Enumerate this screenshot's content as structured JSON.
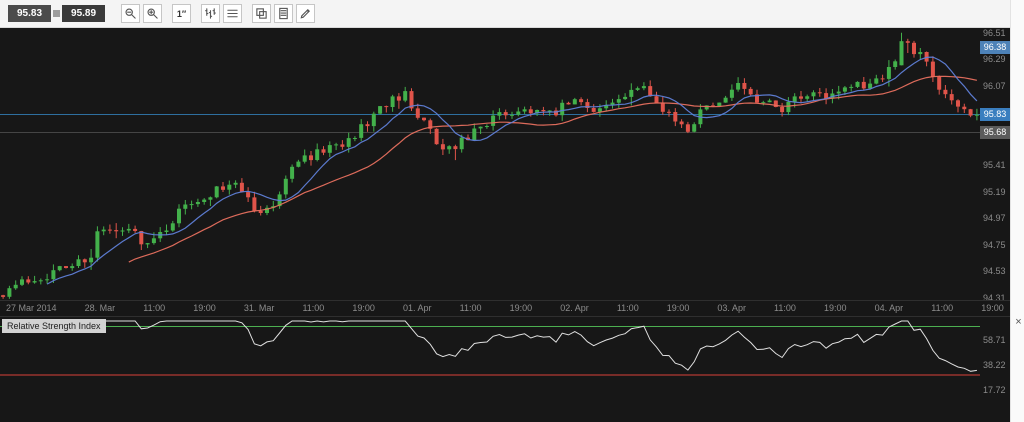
{
  "toolbar": {
    "bid": "95.83",
    "ask": "95.89",
    "timeframe_label": "1″",
    "buttons": [
      "zoom-out",
      "zoom-in",
      "timeframe",
      "chart-type",
      "indicators",
      "duplicate",
      "template",
      "draw"
    ]
  },
  "price_axis": {
    "labels": [
      "96.51",
      "96.29",
      "96.07",
      "95.41",
      "95.19",
      "94.97",
      "94.75",
      "94.53",
      "94.31"
    ],
    "tags": [
      {
        "value": "96.38",
        "bg": "#4d82b8"
      },
      {
        "value": "95.83",
        "bg": "#3a7ebf"
      },
      {
        "value": "95.68",
        "bg": "#5b5b5b"
      }
    ]
  },
  "time_axis": {
    "labels": [
      "27 Mar 2014",
      "28. Mar",
      "11:00",
      "19:00",
      "31. Mar",
      "11:00",
      "19:00",
      "01. Apr",
      "11:00",
      "19:00",
      "02. Apr",
      "11:00",
      "19:00",
      "03. Apr",
      "11:00",
      "19:00",
      "04. Apr",
      "11:00",
      "19:00"
    ]
  },
  "rsi": {
    "title": "Relative Strength Index",
    "close_label": "×",
    "labels": [
      "58.71",
      "38.22",
      "17.72"
    ],
    "upper_level": 70,
    "lower_level": 30
  },
  "chart_data": {
    "type": "candlestick",
    "bid": 95.83,
    "ask": 95.89,
    "price_line": 95.83,
    "ref_line": 95.68,
    "session_high": 96.51,
    "y_range": [
      94.29,
      96.55
    ],
    "candle_count": 156,
    "seed": 7,
    "ma_fast_period": 8,
    "ma_slow_period": 21,
    "rsi_period": 14,
    "trend_anchors": [
      [
        0,
        94.36
      ],
      [
        0.02,
        94.44
      ],
      [
        0.045,
        94.5
      ],
      [
        0.07,
        94.58
      ],
      [
        0.09,
        94.66
      ],
      [
        0.1,
        94.95
      ],
      [
        0.112,
        94.8
      ],
      [
        0.13,
        94.88
      ],
      [
        0.15,
        94.74
      ],
      [
        0.17,
        94.92
      ],
      [
        0.19,
        95.1
      ],
      [
        0.215,
        95.18
      ],
      [
        0.24,
        95.24
      ],
      [
        0.262,
        95.0
      ],
      [
        0.283,
        95.12
      ],
      [
        0.3,
        95.44
      ],
      [
        0.325,
        95.52
      ],
      [
        0.35,
        95.6
      ],
      [
        0.375,
        95.76
      ],
      [
        0.398,
        95.97
      ],
      [
        0.413,
        96.0
      ],
      [
        0.43,
        95.78
      ],
      [
        0.452,
        95.52
      ],
      [
        0.468,
        95.58
      ],
      [
        0.49,
        95.74
      ],
      [
        0.515,
        95.84
      ],
      [
        0.54,
        95.88
      ],
      [
        0.562,
        95.82
      ],
      [
        0.585,
        95.94
      ],
      [
        0.61,
        95.88
      ],
      [
        0.634,
        95.94
      ],
      [
        0.658,
        96.05
      ],
      [
        0.675,
        95.92
      ],
      [
        0.7,
        95.7
      ],
      [
        0.718,
        95.85
      ],
      [
        0.737,
        95.95
      ],
      [
        0.755,
        96.05
      ],
      [
        0.775,
        95.94
      ],
      [
        0.8,
        95.88
      ],
      [
        0.822,
        95.99
      ],
      [
        0.845,
        96.0
      ],
      [
        0.868,
        96.05
      ],
      [
        0.89,
        96.1
      ],
      [
        0.91,
        96.2
      ],
      [
        0.925,
        96.44
      ],
      [
        0.94,
        96.34
      ],
      [
        0.957,
        96.12
      ],
      [
        0.975,
        95.94
      ],
      [
        1,
        95.83
      ]
    ],
    "colors": {
      "up": "#43b14b",
      "down": "#e0544a",
      "ma_fast": "#5f7fd8",
      "ma_slow": "#e8705f",
      "price_line": "#2e6f9f",
      "ref_line": "#454545",
      "rsi_line": "#e0e0e0",
      "rsi_upper": "#4caf50",
      "rsi_lower": "#d9413a"
    }
  }
}
